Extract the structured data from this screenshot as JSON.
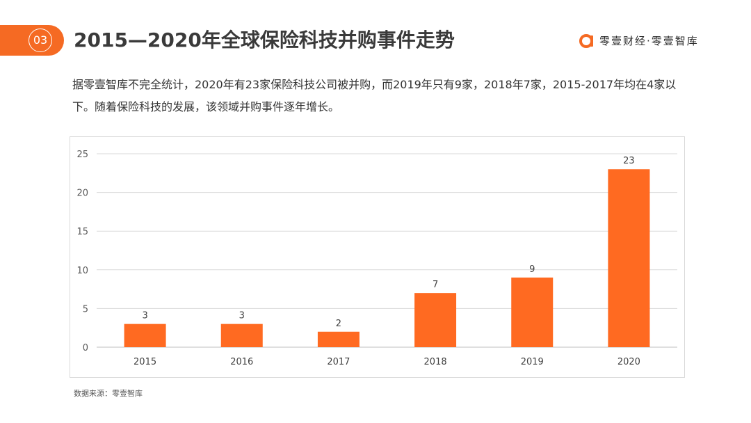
{
  "header": {
    "section_number": "03",
    "title": "2015—2020年全球保险科技并购事件走势",
    "brand": {
      "name": "零壹财经·零壹智库",
      "logo_icon": "brand-a-logo-icon",
      "accent_color": "#f56a23"
    }
  },
  "description": "据零壹智库不完全统计，2020年有23家保险科技公司被并购，而2019年只有9家，2018年7家，2015-2017年均在4家以下。随着保险科技的发展，该领域并购事件逐年增长。",
  "source": "数据来源：零壹智库",
  "chart_data": {
    "type": "bar",
    "categories": [
      "2015",
      "2016",
      "2017",
      "2018",
      "2019",
      "2020"
    ],
    "values": [
      3,
      3,
      2,
      7,
      9,
      23
    ],
    "title": "",
    "xlabel": "",
    "ylabel": "",
    "ylim": [
      0,
      25
    ],
    "yticks": [
      0,
      5,
      10,
      15,
      20,
      25
    ],
    "grid": true,
    "legend": "none",
    "bar_color": "#ff6a21",
    "data_labels": true
  }
}
